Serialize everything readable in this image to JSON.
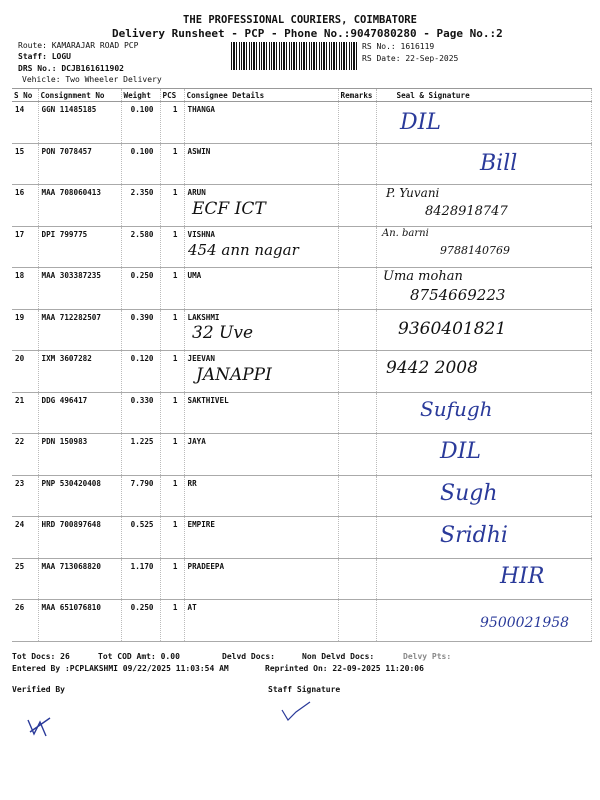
{
  "header": {
    "company": "THE PROFESSIONAL COURIERS, COIMBATORE",
    "subtitle": "Delivery Runsheet - PCP - Phone No.:9047080280 - Page No.:2",
    "route": "Route: KAMARAJAR ROAD PCP",
    "staff": "Staff: LOGU",
    "drs_no": "DRS No.: DCJB161611902",
    "vehicle": "Vehicle: Two Wheeler Delivery",
    "rs_no": "RS No.: 1616119",
    "rs_date": "RS Date: 22-Sep-2025"
  },
  "table": {
    "columns": [
      "S No",
      "Consignment No",
      "Weight",
      "PCS",
      "Consignee Details",
      "Remarks",
      "Seal & Signature"
    ],
    "rows": [
      {
        "sno": "14",
        "consignment": "GGN 11485185",
        "weight": "0.100",
        "pcs": "1",
        "consignee": "THANGA"
      },
      {
        "sno": "15",
        "consignment": "PON 7078457",
        "weight": "0.100",
        "pcs": "1",
        "consignee": "ASWIN"
      },
      {
        "sno": "16",
        "consignment": "MAA 708060413",
        "weight": "2.350",
        "pcs": "1",
        "consignee": "ARUN"
      },
      {
        "sno": "17",
        "consignment": "DPI 799775",
        "weight": "2.580",
        "pcs": "1",
        "consignee": "VISHNA"
      },
      {
        "sno": "18",
        "consignment": "MAA 303387235",
        "weight": "0.250",
        "pcs": "1",
        "consignee": "UMA"
      },
      {
        "sno": "19",
        "consignment": "MAA 712282507",
        "weight": "0.390",
        "pcs": "1",
        "consignee": "LAKSHMI"
      },
      {
        "sno": "20",
        "consignment": "IXM 3607282",
        "weight": "0.120",
        "pcs": "1",
        "consignee": "JEEVAN"
      },
      {
        "sno": "21",
        "consignment": "DDG 496417",
        "weight": "0.330",
        "pcs": "1",
        "consignee": "SAKTHIVEL"
      },
      {
        "sno": "22",
        "consignment": "PDN 150983",
        "weight": "1.225",
        "pcs": "1",
        "consignee": "JAYA"
      },
      {
        "sno": "23",
        "consignment": "PNP 530420408",
        "weight": "7.790",
        "pcs": "1",
        "consignee": "RR"
      },
      {
        "sno": "24",
        "consignment": "HRD 700897648",
        "weight": "0.525",
        "pcs": "1",
        "consignee": "EMPIRE"
      },
      {
        "sno": "25",
        "consignment": "MAA 713068820",
        "weight": "1.170",
        "pcs": "1",
        "consignee": "PRADEEPA"
      },
      {
        "sno": "26",
        "consignment": "MAA 651076810",
        "weight": "0.250",
        "pcs": "1",
        "consignee": "AT"
      }
    ]
  },
  "handwritten": {
    "n1": "DIL",
    "n2": "Bill",
    "n3": "P. Yuvani",
    "n4": "8428918747",
    "n5": "ECF ICT",
    "n6": "454 ann nagar",
    "n7": "An. barni",
    "n8": "9788140769",
    "n9": "Uma mohan",
    "n10": "8754669223",
    "n11": "32 Uve",
    "n12": "9360401821",
    "n13": "JANAPPI",
    "n14": "9442 2008",
    "n15": "Sufugh",
    "n16": "DIL",
    "n17": "Sugh",
    "n18": "Sridhi",
    "n19": "HIR",
    "n20": "9500021958"
  },
  "footer": {
    "tot_docs": "Tot Docs:  26",
    "tot_cod": "Tot COD Amt:    0.00",
    "delvd_docs": "Delvd Docs:",
    "non_delvd_docs": "Non Delvd Docs:",
    "delvy_pts": "Delvy Pts:",
    "entered_by": "Entered By :PCPLAKSHMI 09/22/2025 11:03:54 AM",
    "reprinted_on": "Reprinted On: 22-09-2025 11:20:06",
    "verified_by": "Verified By",
    "staff_signature": "Staff Signature"
  }
}
